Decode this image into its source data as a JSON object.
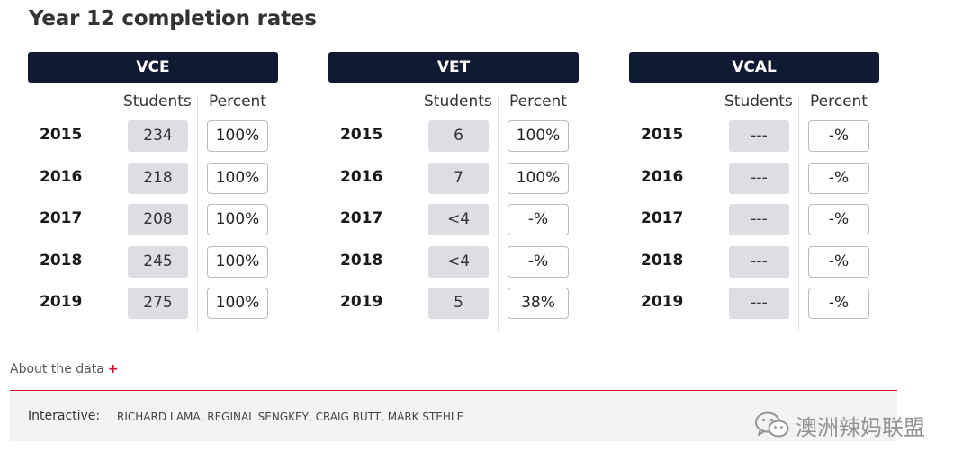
{
  "title": "Year 12 completion rates",
  "columns": {
    "students": "Students",
    "percent": "Percent"
  },
  "panels": [
    {
      "name": "VCE",
      "rows": [
        {
          "year": "2015",
          "students": "234",
          "percent": "100%"
        },
        {
          "year": "2016",
          "students": "218",
          "percent": "100%"
        },
        {
          "year": "2017",
          "students": "208",
          "percent": "100%"
        },
        {
          "year": "2018",
          "students": "245",
          "percent": "100%"
        },
        {
          "year": "2019",
          "students": "275",
          "percent": "100%"
        }
      ]
    },
    {
      "name": "VET",
      "rows": [
        {
          "year": "2015",
          "students": "6",
          "percent": "100%"
        },
        {
          "year": "2016",
          "students": "7",
          "percent": "100%"
        },
        {
          "year": "2017",
          "students": "<4",
          "percent": "-%"
        },
        {
          "year": "2018",
          "students": "<4",
          "percent": "-%"
        },
        {
          "year": "2019",
          "students": "5",
          "percent": "38%"
        }
      ]
    },
    {
      "name": "VCAL",
      "rows": [
        {
          "year": "2015",
          "students": "---",
          "percent": "-%"
        },
        {
          "year": "2016",
          "students": "---",
          "percent": "-%"
        },
        {
          "year": "2017",
          "students": "---",
          "percent": "-%"
        },
        {
          "year": "2018",
          "students": "---",
          "percent": "-%"
        },
        {
          "year": "2019",
          "students": "---",
          "percent": "-%"
        }
      ]
    }
  ],
  "about": {
    "label": "About the data",
    "icon": "plus-icon",
    "plus": "+"
  },
  "footer": {
    "label": "Interactive:",
    "credits": "RICHARD LAMA, REGINAL SENGKEY, CRAIG BUTT, MARK STEHLE"
  },
  "watermark": {
    "text": "澳洲辣妈联盟",
    "icon": "wechat-icon"
  },
  "colors": {
    "header_bg": "#111a33",
    "accent_red": "#c8102e",
    "student_cell_bg": "#dcdee3"
  }
}
